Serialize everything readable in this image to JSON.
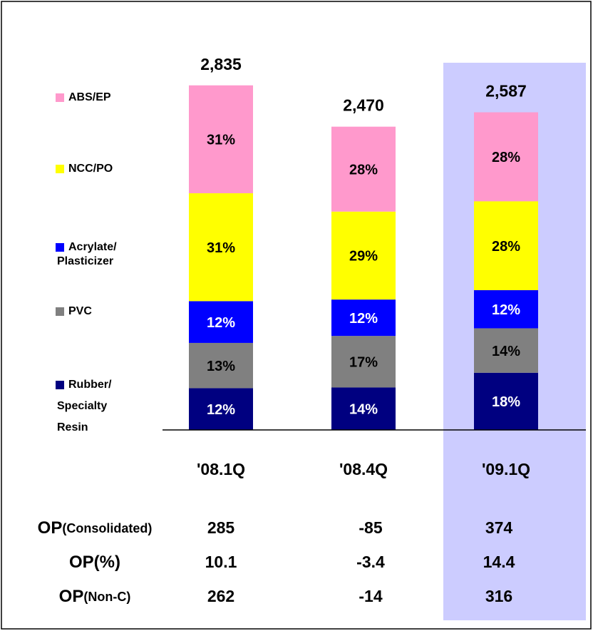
{
  "chart_data": {
    "type": "stacked_bar",
    "categories": [
      "'08.1Q",
      "'08.4Q",
      "'09.1Q"
    ],
    "highlight_index": 2,
    "highlight_color": "#ccccff",
    "totals": {
      "values": [
        2835,
        2470,
        2587
      ],
      "value_labels": [
        "2,835",
        "2,470",
        "2,587"
      ]
    },
    "series": [
      {
        "name": "Rubber/\nSpecialty\nResin",
        "color": "#000080",
        "label_color": "#ffffff",
        "values": [
          12,
          14,
          18
        ],
        "value_labels": [
          "12%",
          "14%",
          "18%"
        ]
      },
      {
        "name": "PVC",
        "color": "#808080",
        "label_color": "#000000",
        "values": [
          13,
          17,
          14
        ],
        "value_labels": [
          "13%",
          "17%",
          "14%"
        ]
      },
      {
        "name": "Acrylate/\nPlasticizer",
        "color": "#0000ff",
        "label_color": "#ffffff",
        "values": [
          12,
          12,
          12
        ],
        "value_labels": [
          "12%",
          "12%",
          "12%"
        ]
      },
      {
        "name": "NCC/PO",
        "color": "#ffff00",
        "label_color": "#000000",
        "values": [
          31,
          29,
          28
        ],
        "value_labels": [
          "31%",
          "29%",
          "28%"
        ]
      },
      {
        "name": "ABS/EP",
        "color": "#ff99cc",
        "label_color": "#000000",
        "values": [
          31,
          28,
          28
        ],
        "value_labels": [
          "31%",
          "28%",
          "28%"
        ]
      }
    ],
    "table": {
      "rows": [
        {
          "label": "OP",
          "label_detail": "(Consolidated)",
          "values": [
            285,
            -85,
            374
          ]
        },
        {
          "label": "OP",
          "label_detail": "(%)",
          "values": [
            10.1,
            -3.4,
            14.4
          ]
        },
        {
          "label": "OP",
          "label_detail": "(Non-C)",
          "values": [
            262,
            -14,
            316
          ]
        }
      ]
    }
  }
}
